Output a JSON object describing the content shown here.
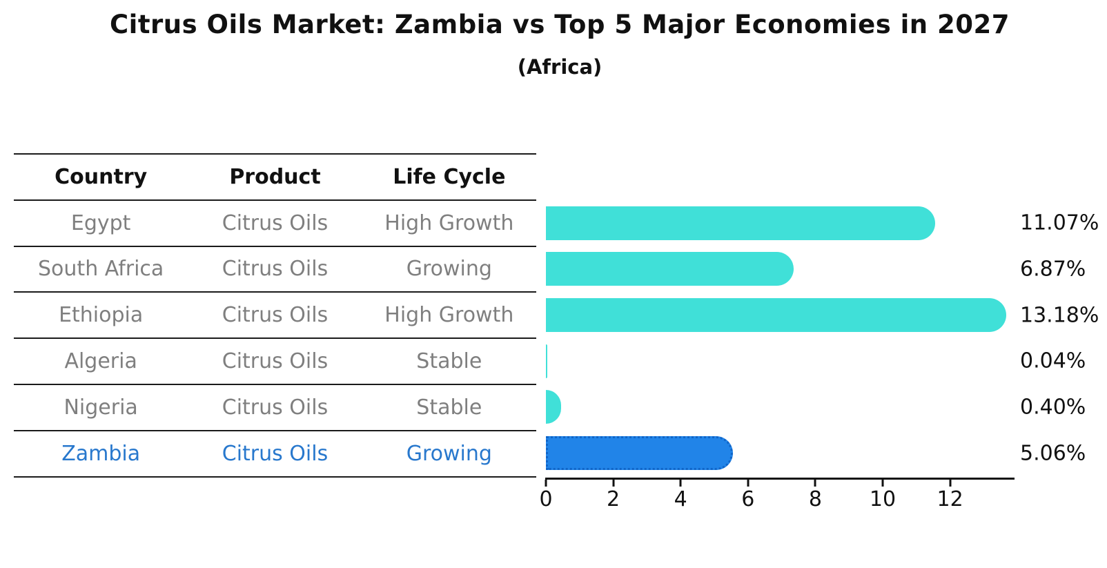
{
  "title": "Citrus Oils Market: Zambia vs Top 5 Major Economies in 2027",
  "subtitle": "(Africa)",
  "table": {
    "headers": [
      "Country",
      "Product",
      "Life Cycle"
    ],
    "rows": [
      {
        "country": "Egypt",
        "product": "Citrus Oils",
        "life_cycle": "High Growth",
        "highlight": false
      },
      {
        "country": "South Africa",
        "product": "Citrus Oils",
        "life_cycle": "Growing",
        "highlight": false
      },
      {
        "country": "Ethiopia",
        "product": "Citrus Oils",
        "life_cycle": "High Growth",
        "highlight": false
      },
      {
        "country": "Algeria",
        "product": "Citrus Oils",
        "life_cycle": "Stable",
        "highlight": false
      },
      {
        "country": "Nigeria",
        "product": "Citrus Oils",
        "life_cycle": "Stable",
        "highlight": false
      },
      {
        "country": "Zambia",
        "product": "Citrus Oils",
        "life_cycle": "Growing",
        "highlight": true
      }
    ]
  },
  "chart_data": {
    "type": "bar",
    "orientation": "horizontal",
    "title": "Citrus Oils Market: Zambia vs Top 5 Major Economies in 2027",
    "subtitle": "(Africa)",
    "categories": [
      "Egypt",
      "South Africa",
      "Ethiopia",
      "Algeria",
      "Nigeria",
      "Zambia"
    ],
    "values": [
      11.07,
      6.87,
      13.18,
      0.04,
      0.4,
      5.06
    ],
    "value_labels": [
      "11.07%",
      "6.87%",
      "13.18%",
      "0.04%",
      "0.40%",
      "5.06%"
    ],
    "x_ticks": [
      0,
      2,
      4,
      6,
      8,
      10,
      12
    ],
    "xlim": [
      0,
      13.85
    ],
    "xlabel": "",
    "ylabel": "",
    "grid": false,
    "legend": false,
    "bar_color": "#40e0d8",
    "highlight": {
      "index": 5,
      "bar_color": "#2184e8",
      "border_color": "#1065c8",
      "border_style": "dotted"
    },
    "text_color": "#111111",
    "muted_text_color": "#7f7f7f",
    "highlight_text_color": "#2878cd"
  }
}
